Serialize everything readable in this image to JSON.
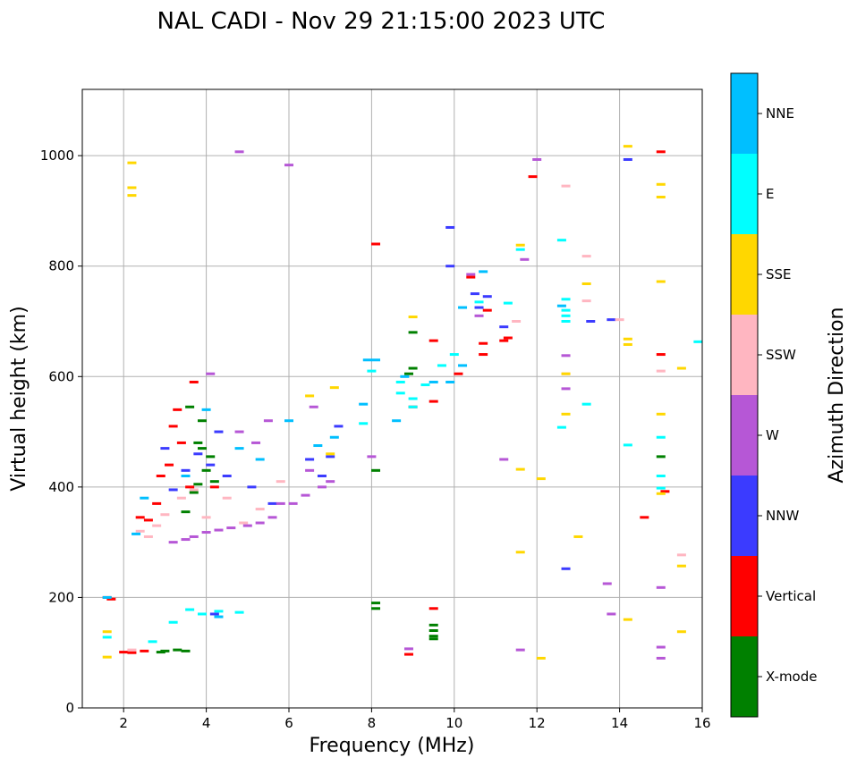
{
  "chart_data": {
    "type": "scatter",
    "title": "NAL CADI - Nov 29 21:15:00 2023 UTC",
    "xlabel": "Frequency (MHz)",
    "ylabel": "Virtual height (km)",
    "xlim": [
      1,
      16
    ],
    "ylim": [
      0,
      1120
    ],
    "xticks": [
      2,
      4,
      6,
      8,
      10,
      12,
      14,
      16
    ],
    "yticks": [
      0,
      200,
      400,
      600,
      800,
      1000
    ],
    "grid": true,
    "colorbar": {
      "label": "Azimuth Direction",
      "categories": [
        {
          "name": "X-mode",
          "color": "#008000"
        },
        {
          "name": "Vertical",
          "color": "#ff0000"
        },
        {
          "name": "NNW",
          "color": "#3b3bff"
        },
        {
          "name": "W",
          "color": "#b657d6"
        },
        {
          "name": "SSW",
          "color": "#ffb6c1"
        },
        {
          "name": "SSE",
          "color": "#ffd700"
        },
        {
          "name": "E",
          "color": "#00ffff"
        },
        {
          "name": "NNE",
          "color": "#00bfff"
        }
      ]
    },
    "series": [
      {
        "name": "X-mode",
        "points": [
          [
            3.0,
            103
          ],
          [
            3.3,
            105
          ],
          [
            3.5,
            103
          ],
          [
            2.9,
            101
          ],
          [
            3.8,
            480
          ],
          [
            3.9,
            470
          ],
          [
            4.0,
            430
          ],
          [
            3.7,
            390
          ],
          [
            4.1,
            455
          ],
          [
            3.9,
            520
          ],
          [
            3.6,
            545
          ],
          [
            4.2,
            410
          ],
          [
            3.5,
            355
          ],
          [
            3.8,
            405
          ],
          [
            8.1,
            430
          ],
          [
            8.1,
            190
          ],
          [
            8.1,
            180
          ],
          [
            9.5,
            150
          ],
          [
            9.5,
            140
          ],
          [
            9.5,
            130
          ],
          [
            9.5,
            125
          ],
          [
            8.9,
            605
          ],
          [
            9.0,
            680
          ],
          [
            9.0,
            615
          ],
          [
            15.0,
            455
          ]
        ]
      },
      {
        "name": "Vertical",
        "points": [
          [
            1.6,
            200
          ],
          [
            1.7,
            197
          ],
          [
            2.0,
            101
          ],
          [
            2.2,
            100
          ],
          [
            2.5,
            103
          ],
          [
            2.4,
            345
          ],
          [
            2.8,
            370
          ],
          [
            2.9,
            420
          ],
          [
            3.1,
            440
          ],
          [
            3.4,
            480
          ],
          [
            3.2,
            510
          ],
          [
            3.7,
            590
          ],
          [
            3.3,
            540
          ],
          [
            3.6,
            400
          ],
          [
            4.2,
            400
          ],
          [
            2.6,
            340
          ],
          [
            8.1,
            840
          ],
          [
            8.9,
            97
          ],
          [
            9.0,
            545
          ],
          [
            9.5,
            665
          ],
          [
            9.5,
            555
          ],
          [
            9.5,
            180
          ],
          [
            10.1,
            605
          ],
          [
            10.7,
            660
          ],
          [
            10.7,
            640
          ],
          [
            10.8,
            720
          ],
          [
            11.2,
            665
          ],
          [
            11.3,
            670
          ],
          [
            11.9,
            962
          ],
          [
            15.0,
            1007
          ],
          [
            15.0,
            640
          ],
          [
            15.1,
            392
          ],
          [
            14.6,
            345
          ],
          [
            10.4,
            780
          ]
        ]
      },
      {
        "name": "NNW",
        "points": [
          [
            3.0,
            470
          ],
          [
            3.2,
            395
          ],
          [
            3.5,
            430
          ],
          [
            3.8,
            460
          ],
          [
            4.1,
            440
          ],
          [
            4.3,
            500
          ],
          [
            4.5,
            420
          ],
          [
            5.1,
            400
          ],
          [
            5.6,
            370
          ],
          [
            6.5,
            450
          ],
          [
            6.8,
            420
          ],
          [
            7.0,
            455
          ],
          [
            7.2,
            510
          ],
          [
            12.7,
            252
          ],
          [
            13.3,
            700
          ],
          [
            13.8,
            703
          ],
          [
            14.2,
            993
          ],
          [
            9.9,
            870
          ],
          [
            9.9,
            800
          ],
          [
            10.5,
            750
          ],
          [
            10.8,
            745
          ],
          [
            11.2,
            690
          ],
          [
            4.2,
            170
          ],
          [
            10.6,
            725
          ]
        ]
      },
      {
        "name": "W",
        "points": [
          [
            3.2,
            300
          ],
          [
            3.5,
            305
          ],
          [
            3.7,
            310
          ],
          [
            4.0,
            318
          ],
          [
            4.3,
            322
          ],
          [
            4.6,
            326
          ],
          [
            5.0,
            330
          ],
          [
            5.3,
            335
          ],
          [
            5.6,
            345
          ],
          [
            6.1,
            370
          ],
          [
            6.4,
            385
          ],
          [
            6.8,
            400
          ],
          [
            7.0,
            410
          ],
          [
            6.5,
            430
          ],
          [
            5.8,
            370
          ],
          [
            5.2,
            480
          ],
          [
            4.8,
            500
          ],
          [
            5.5,
            520
          ],
          [
            6.6,
            545
          ],
          [
            4.1,
            605
          ],
          [
            4.8,
            1007
          ],
          [
            6.0,
            983
          ],
          [
            8.9,
            107
          ],
          [
            8.0,
            455
          ],
          [
            11.2,
            450
          ],
          [
            11.7,
            812
          ],
          [
            12.0,
            993
          ],
          [
            12.7,
            638
          ],
          [
            12.7,
            578
          ],
          [
            13.7,
            225
          ],
          [
            13.8,
            170
          ],
          [
            15.0,
            218
          ],
          [
            15.0,
            110
          ],
          [
            15.0,
            90
          ],
          [
            11.6,
            105
          ],
          [
            10.6,
            710
          ],
          [
            10.4,
            785
          ]
        ]
      },
      {
        "name": "SSW",
        "points": [
          [
            2.4,
            320
          ],
          [
            2.6,
            310
          ],
          [
            2.8,
            330
          ],
          [
            3.0,
            350
          ],
          [
            3.4,
            380
          ],
          [
            3.7,
            395
          ],
          [
            4.0,
            345
          ],
          [
            4.5,
            380
          ],
          [
            4.9,
            335
          ],
          [
            5.3,
            360
          ],
          [
            5.8,
            410
          ],
          [
            2.2,
            105
          ],
          [
            12.7,
            945
          ],
          [
            12.7,
            605
          ],
          [
            13.2,
            818
          ],
          [
            13.2,
            737
          ],
          [
            14.0,
            703
          ],
          [
            15.0,
            610
          ],
          [
            15.5,
            277
          ],
          [
            11.5,
            700
          ]
        ]
      },
      {
        "name": "SSE",
        "points": [
          [
            2.2,
            987
          ],
          [
            2.2,
            942
          ],
          [
            2.2,
            928
          ],
          [
            1.6,
            138
          ],
          [
            1.6,
            92
          ],
          [
            6.5,
            565
          ],
          [
            7.1,
            580
          ],
          [
            7.0,
            460
          ],
          [
            9.0,
            708
          ],
          [
            11.6,
            838
          ],
          [
            11.6,
            432
          ],
          [
            11.6,
            282
          ],
          [
            12.1,
            415
          ],
          [
            12.1,
            90
          ],
          [
            12.7,
            605
          ],
          [
            12.7,
            532
          ],
          [
            13.0,
            310
          ],
          [
            13.2,
            768
          ],
          [
            14.2,
            1017
          ],
          [
            14.2,
            668
          ],
          [
            14.2,
            658
          ],
          [
            14.2,
            160
          ],
          [
            15.0,
            948
          ],
          [
            15.0,
            925
          ],
          [
            15.0,
            772
          ],
          [
            15.0,
            532
          ],
          [
            15.0,
            388
          ],
          [
            15.5,
            615
          ],
          [
            15.5,
            257
          ],
          [
            15.5,
            138
          ]
        ]
      },
      {
        "name": "E",
        "points": [
          [
            3.6,
            178
          ],
          [
            3.9,
            170
          ],
          [
            4.3,
            175
          ],
          [
            4.8,
            173
          ],
          [
            1.6,
            128
          ],
          [
            2.7,
            120
          ],
          [
            3.2,
            155
          ],
          [
            8.0,
            610
          ],
          [
            7.8,
            515
          ],
          [
            8.7,
            590
          ],
          [
            8.7,
            570
          ],
          [
            9.0,
            560
          ],
          [
            9.0,
            545
          ],
          [
            9.3,
            585
          ],
          [
            9.7,
            620
          ],
          [
            10.0,
            640
          ],
          [
            10.6,
            735
          ],
          [
            11.3,
            733
          ],
          [
            12.6,
            847
          ],
          [
            12.7,
            740
          ],
          [
            12.7,
            720
          ],
          [
            12.7,
            710
          ],
          [
            12.7,
            700
          ],
          [
            12.6,
            508
          ],
          [
            13.2,
            550
          ],
          [
            14.2,
            476
          ],
          [
            15.0,
            490
          ],
          [
            15.0,
            420
          ],
          [
            15.0,
            398
          ],
          [
            15.9,
            663
          ],
          [
            11.6,
            830
          ]
        ]
      },
      {
        "name": "NNE",
        "points": [
          [
            1.6,
            200
          ],
          [
            2.3,
            315
          ],
          [
            2.5,
            380
          ],
          [
            3.5,
            420
          ],
          [
            4.0,
            540
          ],
          [
            4.8,
            470
          ],
          [
            5.3,
            450
          ],
          [
            6.0,
            520
          ],
          [
            6.7,
            475
          ],
          [
            7.1,
            490
          ],
          [
            7.8,
            550
          ],
          [
            7.9,
            630
          ],
          [
            8.1,
            630
          ],
          [
            8.8,
            600
          ],
          [
            9.5,
            590
          ],
          [
            9.9,
            590
          ],
          [
            10.2,
            620
          ],
          [
            10.7,
            790
          ],
          [
            10.2,
            725
          ],
          [
            12.6,
            728
          ],
          [
            8.6,
            520
          ],
          [
            4.3,
            165
          ]
        ]
      }
    ]
  }
}
